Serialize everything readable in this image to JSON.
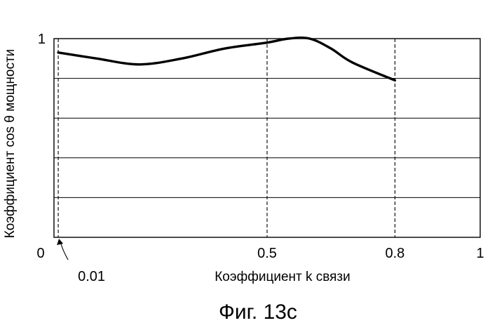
{
  "chart_data": {
    "type": "line",
    "x": [
      0.01,
      0.1,
      0.2,
      0.3,
      0.4,
      0.5,
      0.55,
      0.6,
      0.65,
      0.7,
      0.8
    ],
    "series": [
      {
        "values": [
          0.93,
          0.9,
          0.87,
          0.9,
          0.95,
          0.98,
          1.0,
          1.0,
          0.95,
          0.88,
          0.79
        ]
      }
    ],
    "xlim": [
      0,
      1
    ],
    "ylim": [
      0,
      1
    ],
    "xticks": [
      {
        "value": 0,
        "label": "0"
      },
      {
        "value": 0.5,
        "label": "0.5"
      },
      {
        "value": 0.8,
        "label": "0.8"
      },
      {
        "value": 1,
        "label": "1"
      }
    ],
    "yticks": [
      {
        "value": 1,
        "label": "1"
      }
    ],
    "x_reference_lines": [
      0.01,
      0.5,
      0.8
    ],
    "y_gridlines": [
      0.2,
      0.4,
      0.6,
      0.8
    ],
    "annotation": "0.01",
    "xlabel": "Коэффициент k связи",
    "ylabel": "Коэффициент  cos θ  мощности",
    "caption": "Фиг. 13с"
  }
}
